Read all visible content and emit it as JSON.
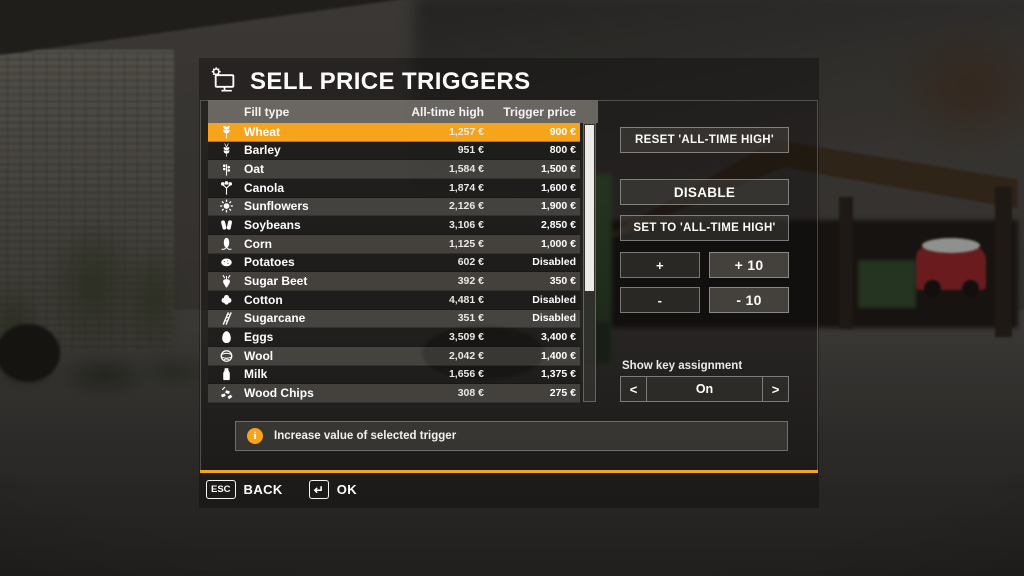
{
  "title": {
    "text": "SELL PRICE TRIGGERS"
  },
  "table": {
    "headers": [
      "Fill type",
      "All-time high",
      "Trigger price"
    ],
    "rows": [
      {
        "icon": "wheat-icon",
        "name": "Wheat",
        "all_time_high": "1,257 €",
        "trigger_price": "900 €",
        "selected": true
      },
      {
        "icon": "barley-icon",
        "name": "Barley",
        "all_time_high": "951 €",
        "trigger_price": "800 €"
      },
      {
        "icon": "oat-icon",
        "name": "Oat",
        "all_time_high": "1,584 €",
        "trigger_price": "1,500 €"
      },
      {
        "icon": "canola-icon",
        "name": "Canola",
        "all_time_high": "1,874 €",
        "trigger_price": "1,600 €"
      },
      {
        "icon": "sunflower-icon",
        "name": "Sunflowers",
        "all_time_high": "2,126 €",
        "trigger_price": "1,900 €"
      },
      {
        "icon": "soybean-icon",
        "name": "Soybeans",
        "all_time_high": "3,106 €",
        "trigger_price": "2,850 €"
      },
      {
        "icon": "corn-icon",
        "name": "Corn",
        "all_time_high": "1,125 €",
        "trigger_price": "1,000 €"
      },
      {
        "icon": "potato-icon",
        "name": "Potatoes",
        "all_time_high": "602 €",
        "trigger_price": "Disabled"
      },
      {
        "icon": "sugar-beet-icon",
        "name": "Sugar Beet",
        "all_time_high": "392 €",
        "trigger_price": "350 €"
      },
      {
        "icon": "cotton-icon",
        "name": "Cotton",
        "all_time_high": "4,481 €",
        "trigger_price": "Disabled"
      },
      {
        "icon": "sugarcane-icon",
        "name": "Sugarcane",
        "all_time_high": "351 €",
        "trigger_price": "Disabled"
      },
      {
        "icon": "egg-icon",
        "name": "Eggs",
        "all_time_high": "3,509 €",
        "trigger_price": "3,400 €"
      },
      {
        "icon": "wool-icon",
        "name": "Wool",
        "all_time_high": "2,042 €",
        "trigger_price": "1,400 €"
      },
      {
        "icon": "milk-icon",
        "name": "Milk",
        "all_time_high": "1,656 €",
        "trigger_price": "1,375 €"
      },
      {
        "icon": "wood-chips-icon",
        "name": "Wood Chips",
        "all_time_high": "308 €",
        "trigger_price": "275 €"
      }
    ]
  },
  "actions": {
    "reset": "RESET 'ALL-TIME HIGH'",
    "disable": "DISABLE",
    "set_to_high": "SET TO 'ALL-TIME HIGH'",
    "plus": "+",
    "plus_ten": "+ 10",
    "minus": "-",
    "minus_ten": "- 10"
  },
  "key_assignment": {
    "label": "Show key assignment",
    "prev": "<",
    "value": "On",
    "next": ">"
  },
  "info_bar": {
    "text": "Increase value of selected trigger"
  },
  "footer": {
    "esc_key": "ESC",
    "back": "BACK",
    "enter_key": "↵",
    "ok": "OK"
  },
  "colors": {
    "accent": "#f7a41d",
    "selected_row": "#f7a41d"
  }
}
